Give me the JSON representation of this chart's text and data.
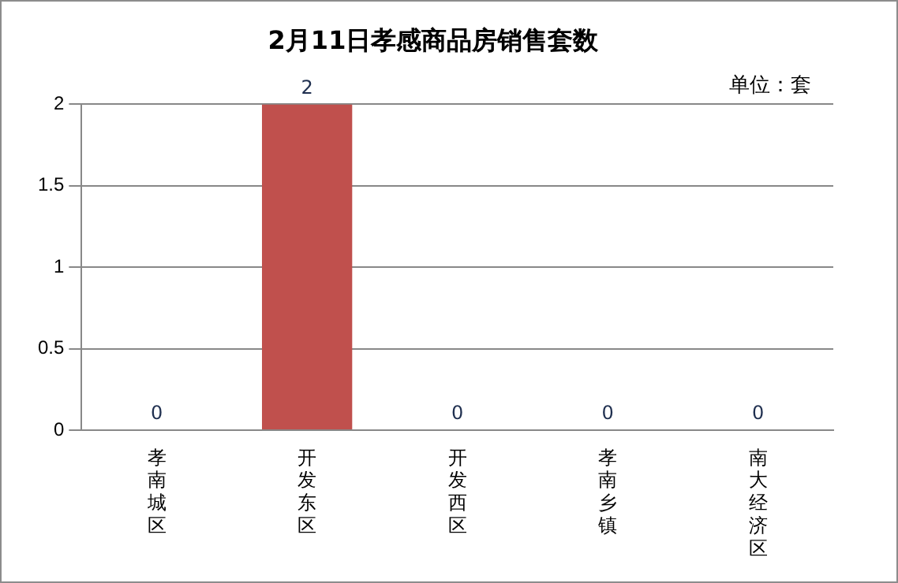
{
  "chart_data": {
    "type": "bar",
    "title": "2月11日孝感商品房销售套数",
    "annotations": [
      "单位：套"
    ],
    "categories": [
      "孝南城区",
      "开发东区",
      "开发西区",
      "孝南乡镇",
      "南大经济区"
    ],
    "values": [
      0,
      2,
      0,
      0,
      0
    ],
    "colors": [
      "#3a6496",
      "#c0504d",
      "#77933c",
      "#604a7b",
      "#31859c"
    ],
    "ylim": [
      0,
      2
    ],
    "yticks": [
      0,
      0.5,
      1,
      1.5,
      2
    ],
    "grid": "y",
    "data_labels": true,
    "legend": false
  }
}
